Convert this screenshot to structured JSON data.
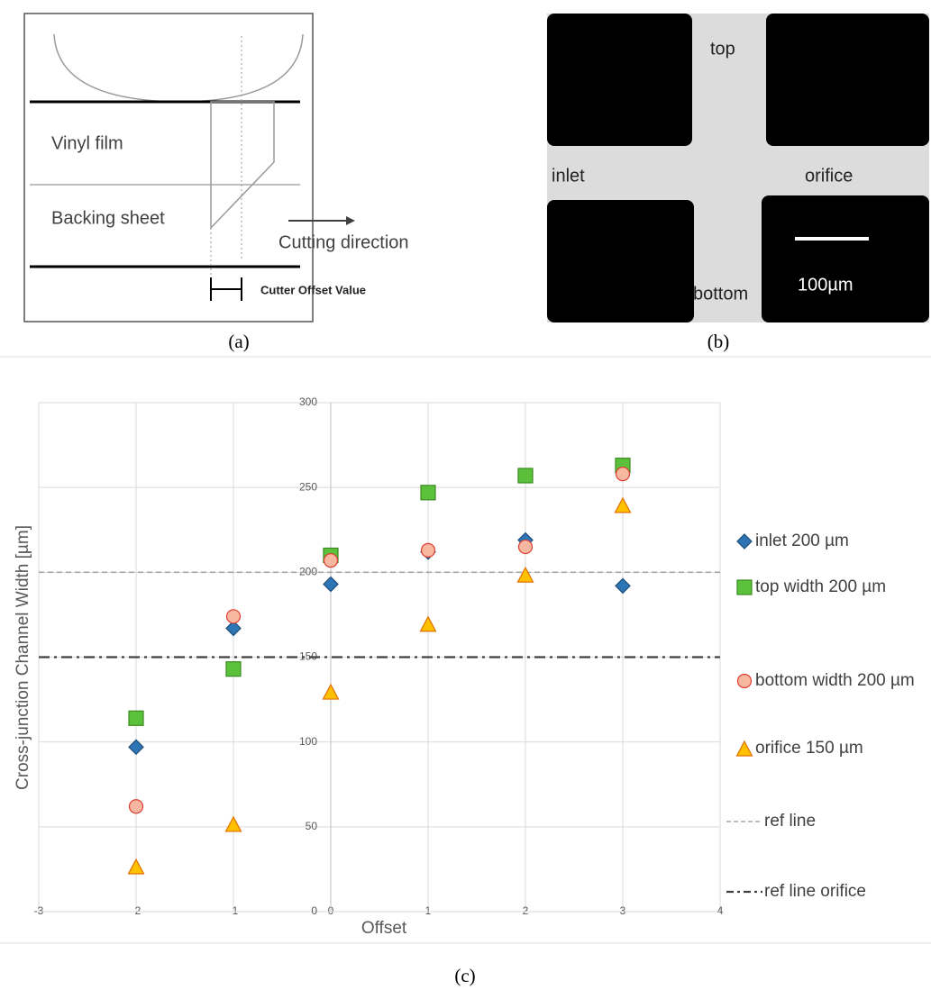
{
  "panel_a": {
    "label": "(a)",
    "texts": [
      "Vinyl film",
      "Backing sheet",
      "Cutting direction",
      "Cutter Offset Value"
    ]
  },
  "panel_b": {
    "label": "(b)",
    "texts": [
      "top",
      "inlet",
      "orifice",
      "bottom",
      "100µm"
    ]
  },
  "chart_data": {
    "type": "scatter",
    "label": "(c)",
    "x_label": "Offset",
    "y_label": "Cross-junction Channel Width [µm]",
    "x": [
      -2,
      -1,
      0,
      1,
      2,
      3
    ],
    "series": [
      {
        "name": "inlet 200 µm",
        "marker": "diamond",
        "color": "#2e75b6",
        "values": [
          97,
          167,
          193,
          212,
          219,
          192
        ]
      },
      {
        "name": "top width 200 µm",
        "marker": "square",
        "color": "#5cc13a",
        "values": [
          114,
          143,
          210,
          247,
          257,
          263
        ]
      },
      {
        "name": "bottom width 200 µm",
        "marker": "circle",
        "color": "#f7b7a0",
        "values": [
          62,
          174,
          207,
          213,
          215,
          258
        ]
      },
      {
        "name": "orifice 150 µm",
        "marker": "triangle",
        "color": "#ffc000",
        "values": [
          26,
          51,
          129,
          169,
          198,
          239
        ]
      }
    ],
    "ref_lines": [
      {
        "name": "ref line",
        "value": 200,
        "style": "dashed",
        "color": "#a6a6a6"
      },
      {
        "name": "ref line orifice",
        "value": 150,
        "style": "dashdot",
        "color": "#404040"
      }
    ],
    "xlim": [
      -3,
      4
    ],
    "xticks": [
      -3,
      -2,
      -1,
      0,
      1,
      2,
      3,
      4
    ],
    "ylim": [
      0,
      300
    ],
    "yticks": [
      0,
      50,
      100,
      150,
      200,
      250,
      300
    ],
    "grid": true
  }
}
